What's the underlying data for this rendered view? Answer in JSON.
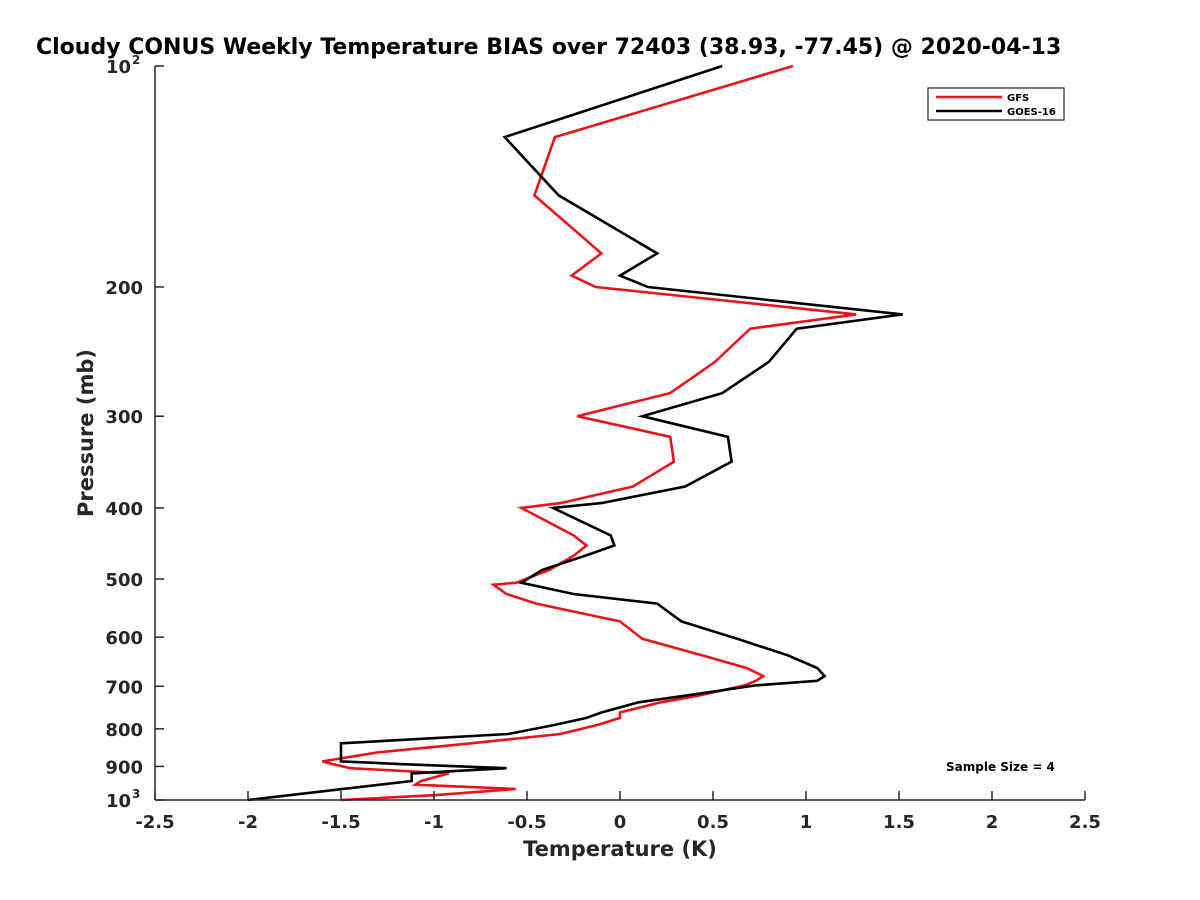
{
  "chart_data": {
    "type": "line",
    "title": "Cloudy CONUS Weekly Temperature BIAS over 72403 (38.93, -77.45) @ 2020-04-13",
    "xlabel": "Temperature (K)",
    "ylabel": "Pressure (mb)",
    "xlim": [
      -2.5,
      2.5
    ],
    "ylim": [
      100,
      1000
    ],
    "yscale": "log",
    "yreversed": true,
    "grid": false,
    "legend_position": "top-right",
    "x_ticks": [
      -2.5,
      -2,
      -1.5,
      -1,
      -0.5,
      0,
      0.5,
      1,
      1.5,
      2,
      2.5
    ],
    "x_tick_labels": [
      "-2.5",
      "-2",
      "-1.5",
      "-1",
      "-0.5",
      "0",
      "0.5",
      "1",
      "1.5",
      "2",
      "2.5"
    ],
    "y_ticks": [
      {
        "value": 100,
        "label": "10",
        "sup": "2"
      },
      {
        "value": 200,
        "label": "200",
        "sup": ""
      },
      {
        "value": 300,
        "label": "300",
        "sup": ""
      },
      {
        "value": 400,
        "label": "400",
        "sup": ""
      },
      {
        "value": 500,
        "label": "500",
        "sup": ""
      },
      {
        "value": 600,
        "label": "600",
        "sup": ""
      },
      {
        "value": 700,
        "label": "700",
        "sup": ""
      },
      {
        "value": 800,
        "label": "800",
        "sup": ""
      },
      {
        "value": 900,
        "label": "900",
        "sup": ""
      },
      {
        "value": 1000,
        "label": "10",
        "sup": "3"
      }
    ],
    "series": [
      {
        "name": "GFS",
        "color": "#e8141c",
        "points": [
          [
            0.93,
            100
          ],
          [
            -0.35,
            125
          ],
          [
            -0.46,
            150
          ],
          [
            -0.1,
            180
          ],
          [
            -0.26,
            193
          ],
          [
            -0.13,
            200
          ],
          [
            1.27,
            218
          ],
          [
            0.7,
            228
          ],
          [
            0.51,
            253
          ],
          [
            0.27,
            279
          ],
          [
            -0.23,
            300
          ],
          [
            0.27,
            320
          ],
          [
            0.29,
            346
          ],
          [
            0.07,
            374
          ],
          [
            -0.32,
            394
          ],
          [
            -0.53,
            400
          ],
          [
            -0.25,
            436
          ],
          [
            -0.18,
            450
          ],
          [
            -0.25,
            465
          ],
          [
            -0.38,
            486
          ],
          [
            -0.56,
            506
          ],
          [
            -0.68,
            509
          ],
          [
            -0.61,
            524
          ],
          [
            -0.45,
            540
          ],
          [
            0.0,
            571
          ],
          [
            0.12,
            603
          ],
          [
            0.44,
            635
          ],
          [
            0.68,
            661
          ],
          [
            0.77,
            678
          ],
          [
            0.73,
            688
          ],
          [
            0.67,
            698
          ],
          [
            0.42,
            721
          ],
          [
            0.22,
            736
          ],
          [
            0.0,
            760
          ],
          [
            0.0,
            773
          ],
          [
            -0.12,
            790
          ],
          [
            -0.32,
            813
          ],
          [
            -0.8,
            837
          ],
          [
            -1.3,
            861
          ],
          [
            -1.6,
            886
          ],
          [
            -1.55,
            893
          ],
          [
            -1.45,
            905
          ],
          [
            -0.92,
            920
          ],
          [
            -1.07,
            942
          ],
          [
            -1.1,
            953
          ],
          [
            -0.56,
            966
          ],
          [
            -1.0,
            985
          ],
          [
            -1.5,
            1000
          ]
        ]
      },
      {
        "name": "GOES-16",
        "color": "#000000",
        "points": [
          [
            0.55,
            100
          ],
          [
            -0.62,
            125
          ],
          [
            -0.33,
            150
          ],
          [
            0.2,
            180
          ],
          [
            0.0,
            193
          ],
          [
            0.15,
            200
          ],
          [
            1.52,
            218
          ],
          [
            0.95,
            228
          ],
          [
            0.8,
            253
          ],
          [
            0.55,
            279
          ],
          [
            0.12,
            300
          ],
          [
            0.58,
            320
          ],
          [
            0.6,
            346
          ],
          [
            0.35,
            374
          ],
          [
            -0.1,
            394
          ],
          [
            -0.36,
            400
          ],
          [
            -0.05,
            436
          ],
          [
            -0.03,
            450
          ],
          [
            -0.19,
            465
          ],
          [
            -0.42,
            486
          ],
          [
            -0.53,
            506
          ],
          [
            -0.25,
            524
          ],
          [
            0.2,
            540
          ],
          [
            0.33,
            571
          ],
          [
            0.63,
            603
          ],
          [
            0.9,
            635
          ],
          [
            1.06,
            661
          ],
          [
            1.1,
            678
          ],
          [
            1.06,
            688
          ],
          [
            0.73,
            698
          ],
          [
            0.35,
            721
          ],
          [
            0.1,
            736
          ],
          [
            -0.1,
            760
          ],
          [
            -0.18,
            773
          ],
          [
            -0.35,
            790
          ],
          [
            -0.6,
            813
          ],
          [
            -1.5,
            837
          ],
          [
            -1.5,
            861
          ],
          [
            -1.5,
            886
          ],
          [
            -1.2,
            893
          ],
          [
            -0.61,
            905
          ],
          [
            -1.12,
            920
          ],
          [
            -1.12,
            942
          ],
          [
            -2.0,
            1000
          ]
        ]
      }
    ],
    "annotations": [
      "Sample Size = 4"
    ]
  }
}
